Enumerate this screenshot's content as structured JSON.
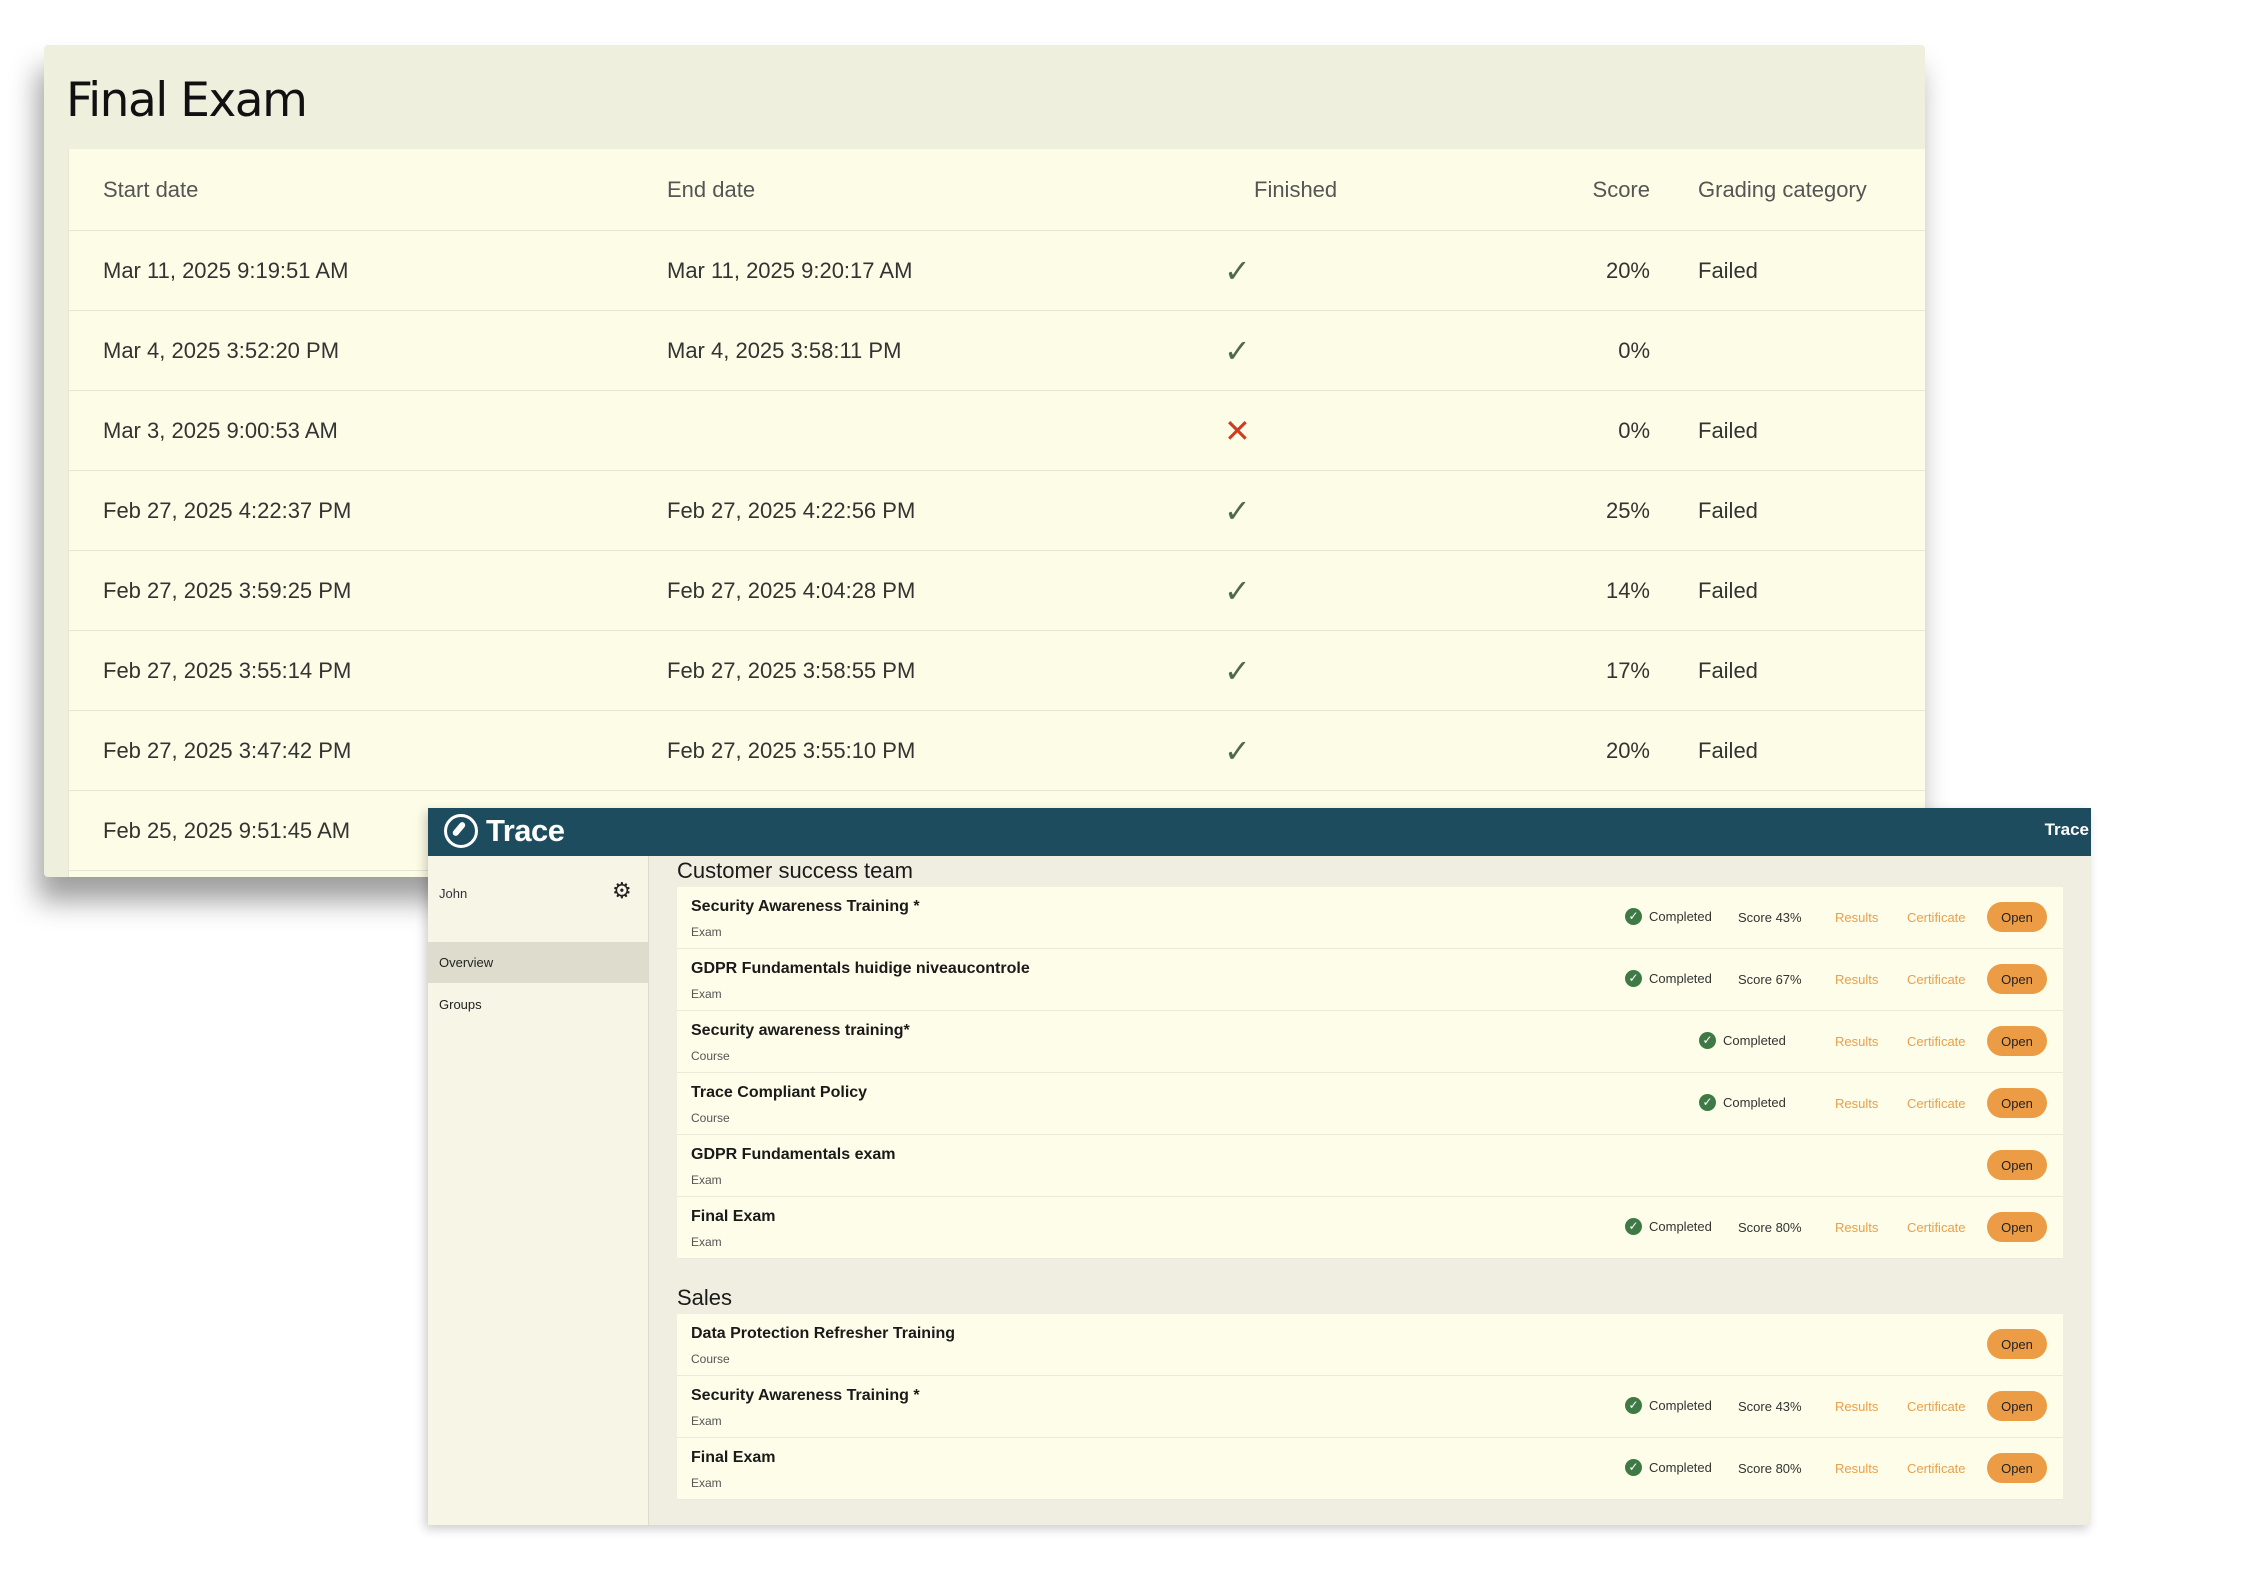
{
  "exam": {
    "title": "Final Exam",
    "columns": {
      "start": "Start date",
      "end": "End date",
      "finished": "Finished",
      "score": "Score",
      "grade": "Grading category"
    },
    "rows": [
      {
        "start": "Mar 11, 2025 9:19:51 AM",
        "end": "Mar 11, 2025 9:20:17 AM",
        "finished": "✓",
        "score": "20%",
        "grade": "Failed"
      },
      {
        "start": "Mar 4, 2025 3:52:20 PM",
        "end": "Mar 4, 2025 3:58:11 PM",
        "finished": "✓",
        "score": "0%",
        "grade": ""
      },
      {
        "start": "Mar 3, 2025 9:00:53 AM",
        "end": "",
        "finished": "✕",
        "score": "0%",
        "grade": "Failed"
      },
      {
        "start": "Feb 27, 2025 4:22:37 PM",
        "end": "Feb 27, 2025 4:22:56 PM",
        "finished": "✓",
        "score": "25%",
        "grade": "Failed"
      },
      {
        "start": "Feb 27, 2025 3:59:25 PM",
        "end": "Feb 27, 2025 4:04:28 PM",
        "finished": "✓",
        "score": "14%",
        "grade": "Failed"
      },
      {
        "start": "Feb 27, 2025 3:55:14 PM",
        "end": "Feb 27, 2025 3:58:55 PM",
        "finished": "✓",
        "score": "17%",
        "grade": "Failed"
      },
      {
        "start": "Feb 27, 2025 3:47:42 PM",
        "end": "Feb 27, 2025 3:55:10 PM",
        "finished": "✓",
        "score": "20%",
        "grade": "Failed"
      },
      {
        "start": "Feb 25, 2025 9:51:45 AM"
      }
    ]
  },
  "trace": {
    "brand": "Trace",
    "topbar_right": "Trace",
    "user": "John",
    "nav": {
      "overview": "Overview",
      "groups": "Groups"
    },
    "labels": {
      "completed": "Completed",
      "results": "Results",
      "certificate": "Certificate",
      "open": "Open",
      "check": "✓"
    },
    "groups": [
      {
        "title": "Customer success team",
        "items": [
          {
            "title": "Security Awareness Training *",
            "type": "Exam",
            "completed": true,
            "score": "Score 43%"
          },
          {
            "title": "GDPR Fundamentals huidige niveaucontrole",
            "type": "Exam",
            "completed": true,
            "score": "Score 67%"
          },
          {
            "title": "Security awareness training*",
            "type": "Course",
            "completed": true
          },
          {
            "title": "Trace Compliant Policy",
            "type": "Course",
            "completed": true
          },
          {
            "title": "GDPR Fundamentals exam",
            "type": "Exam",
            "completed": false
          },
          {
            "title": "Final Exam",
            "type": "Exam",
            "completed": true,
            "score": "Score 80%"
          }
        ]
      },
      {
        "title": "Sales",
        "items": [
          {
            "title": "Data Protection Refresher Training",
            "type": "Course",
            "completed": false
          },
          {
            "title": "Security Awareness Training *",
            "type": "Exam",
            "completed": true,
            "score": "Score 43%"
          },
          {
            "title": "Final Exam",
            "type": "Exam",
            "completed": true,
            "score": "Score 80%"
          }
        ]
      }
    ]
  }
}
